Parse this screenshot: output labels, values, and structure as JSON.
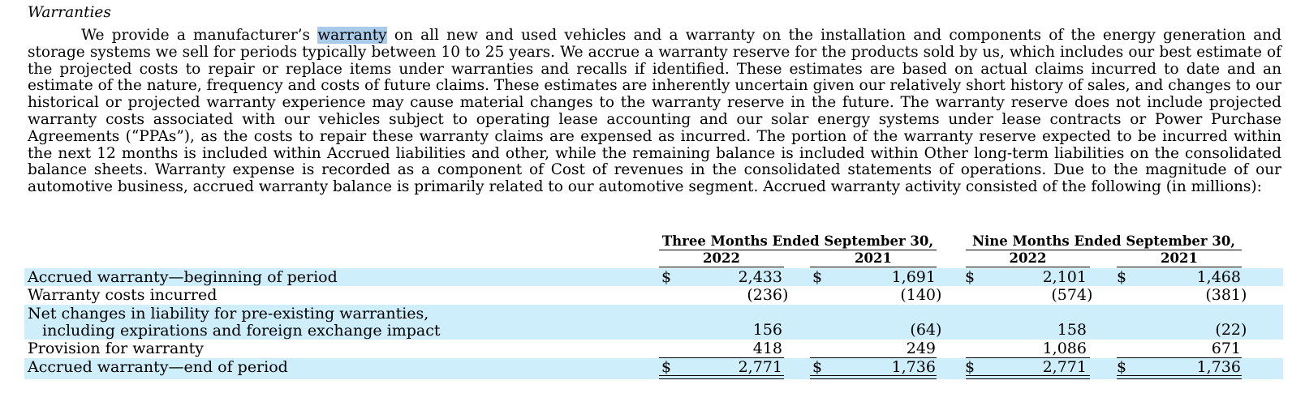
{
  "section": {
    "title": "Warranties",
    "para_before": "We provide a manufacturer’s ",
    "para_highlight": "warranty",
    "para_after": " on all new and used vehicles and a warranty on the installation and components of the energy generation and storage systems we sell for periods typically between 10 to 25 years. We accrue a warranty reserve for the products sold by us, which includes our best estimate of the projected costs to repair or replace items under warranties and recalls if identified. These estimates are based on actual claims incurred to date and an estimate of the nature, frequency and costs of future claims. These estimates are inherently uncertain given our relatively short history of sales, and changes to our historical or projected warranty experience may cause material changes to the warranty reserve in the future. The warranty reserve does not include projected warranty costs associated with our vehicles subject to operating lease accounting and our solar energy systems under lease contracts or Power Purchase Agreements (“PPAs”), as the costs to repair these warranty claims are expensed as incurred. The portion of the warranty reserve expected to be incurred within the next 12 months is included within Accrued liabilities and other, while the remaining balance is included within Other long-term liabilities on the consolidated balance sheets. Warranty expense is recorded as a component of Cost of revenues in the consolidated statements of operations. Due to the magnitude of our automotive business, accrued warranty balance is primarily related to our automotive segment. Accrued warranty activity consisted of the following (in millions):"
  },
  "table": {
    "group_headers": [
      "Three Months Ended September 30,",
      "Nine Months Ended September 30,"
    ],
    "year_headers": [
      "2022",
      "2021",
      "2022",
      "2021"
    ],
    "currency": "$",
    "rows": [
      {
        "label": "Accrued warranty—beginning of period",
        "values": [
          "2,433",
          "1,691",
          "2,101",
          "1,468"
        ],
        "closers": [
          "",
          "",
          "",
          ""
        ]
      },
      {
        "label": "Warranty costs incurred",
        "values": [
          "(236",
          "(140",
          "(574",
          "(381"
        ],
        "closers": [
          ")",
          ")",
          ")",
          ")"
        ]
      },
      {
        "label": "Net changes in liability for pre-existing warranties,",
        "label2": "including expirations and foreign exchange impact",
        "values": [
          "156",
          "(64",
          "158",
          "(22"
        ],
        "closers": [
          "",
          ")",
          "",
          ")"
        ]
      },
      {
        "label": "Provision for warranty",
        "values": [
          "418",
          "249",
          "1,086",
          "671"
        ],
        "closers": [
          "",
          "",
          "",
          ""
        ]
      },
      {
        "label": "Accrued warranty—end of period",
        "values": [
          "2,771",
          "1,736",
          "2,771",
          "1,736"
        ],
        "closers": [
          "",
          "",
          "",
          ""
        ]
      }
    ]
  }
}
